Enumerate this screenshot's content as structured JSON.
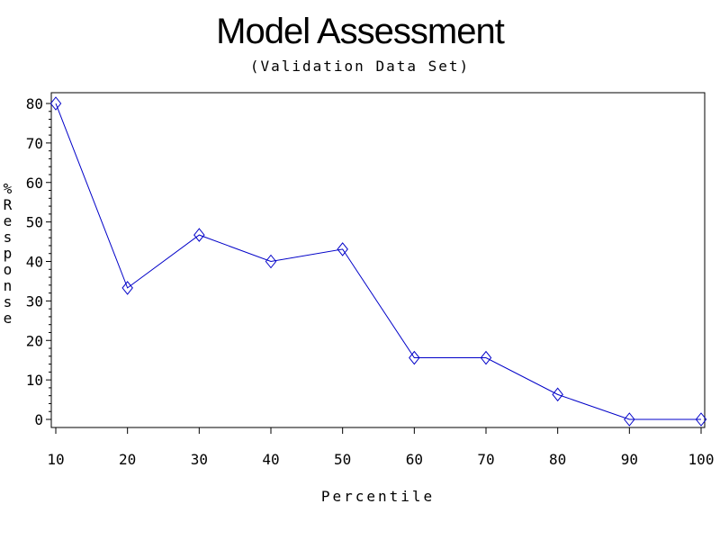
{
  "chart_data": {
    "type": "line",
    "title": "Model Assessment",
    "subtitle": "(Validation Data Set)",
    "xlabel": "Percentile",
    "ylabel": "%Response",
    "x": [
      10,
      20,
      30,
      40,
      50,
      60,
      70,
      80,
      90,
      100
    ],
    "series": [
      {
        "values": [
          80,
          33.3,
          46.7,
          40,
          43.1,
          15.6,
          15.6,
          6.3,
          0,
          0
        ]
      }
    ],
    "xlim": [
      10,
      100
    ],
    "ylim": [
      -2,
      82
    ],
    "xticks": [
      "10",
      "20",
      "30",
      "40",
      "50",
      "60",
      "70",
      "80",
      "90",
      "100"
    ],
    "yticks": [
      "0",
      "10",
      "20",
      "30",
      "40",
      "50",
      "60",
      "70",
      "80"
    ],
    "grid": false,
    "marker": "diamond",
    "line_color": "#0000c8"
  }
}
